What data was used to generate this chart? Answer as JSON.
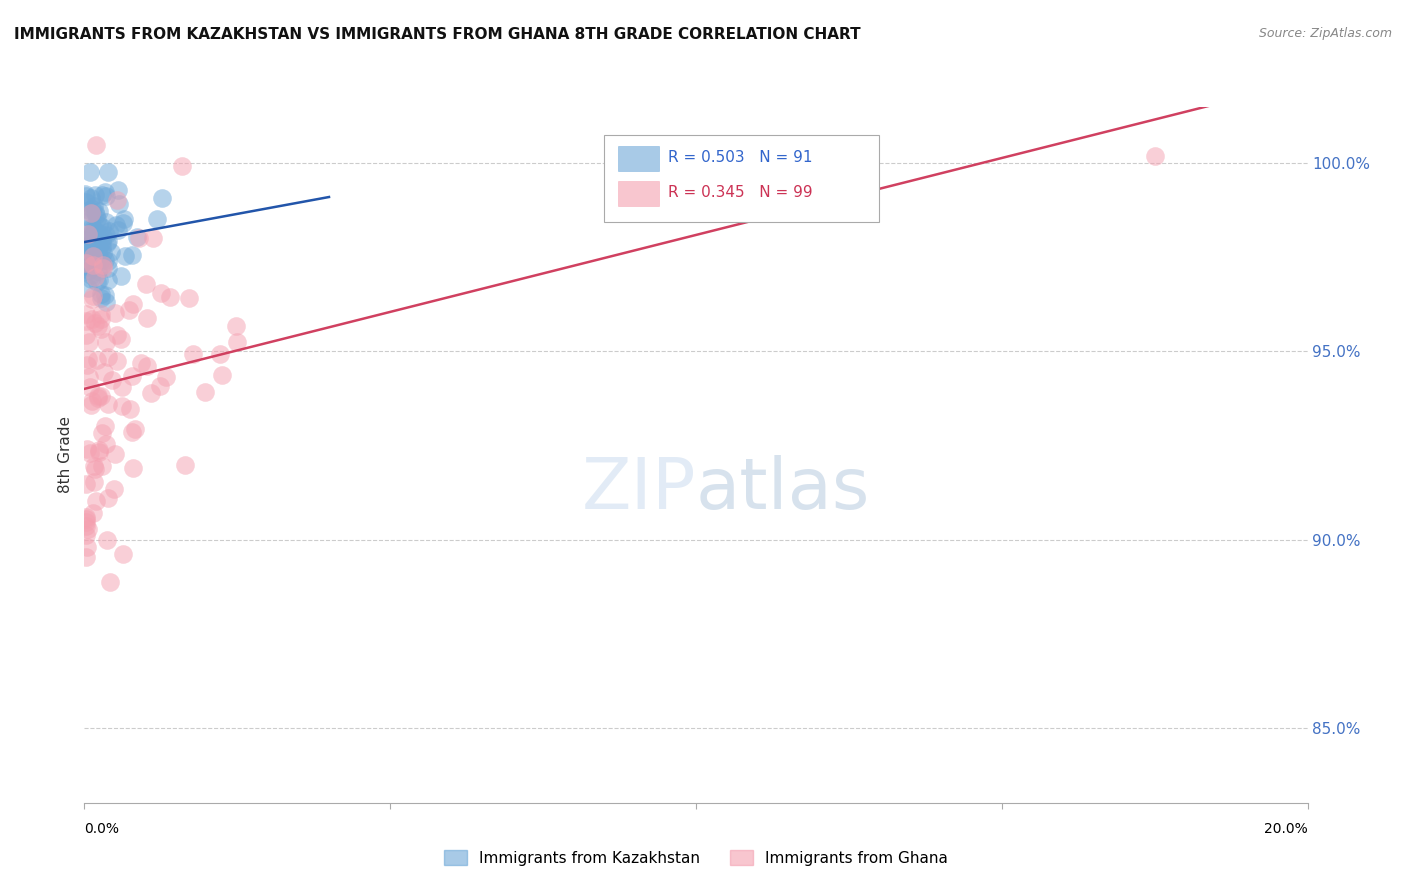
{
  "title": "IMMIGRANTS FROM KAZAKHSTAN VS IMMIGRANTS FROM GHANA 8TH GRADE CORRELATION CHART",
  "source": "Source: ZipAtlas.com",
  "ylabel": "8th Grade",
  "y_ticks": [
    85.0,
    90.0,
    95.0,
    100.0
  ],
  "xlim": [
    0.0,
    20.0
  ],
  "ylim": [
    83.0,
    101.5
  ],
  "legend_kaz": "Immigrants from Kazakhstan",
  "legend_ghana": "Immigrants from Ghana",
  "R_kaz": 0.503,
  "N_kaz": 91,
  "R_ghana": 0.345,
  "N_ghana": 99,
  "color_kaz": "#6ea8d8",
  "color_ghana": "#f4a0b0",
  "line_color_kaz": "#2255aa",
  "line_color_ghana": "#d04060"
}
